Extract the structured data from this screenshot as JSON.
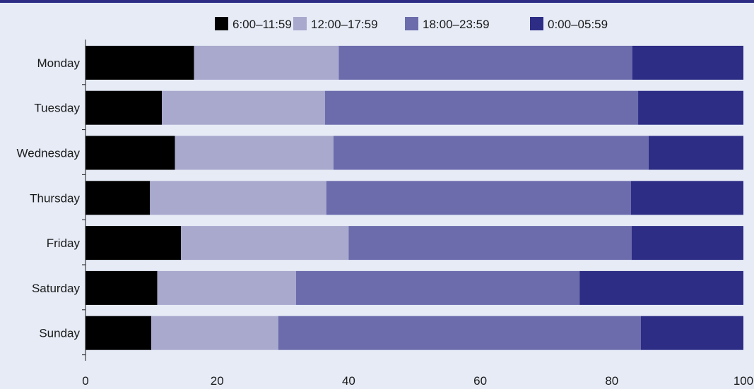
{
  "chart_data": {
    "type": "bar",
    "orientation": "horizontal",
    "stacked": true,
    "categories": [
      "Monday",
      "Tuesday",
      "Wednesday",
      "Thursday",
      "Friday",
      "Saturday",
      "Sunday"
    ],
    "series": [
      {
        "name": "6:00–11:59",
        "color": "#000000",
        "values": [
          16.5,
          11.6,
          13.6,
          9.8,
          14.5,
          10.9,
          10.0
        ]
      },
      {
        "name": "12:00–17:59",
        "color": "#a9a9cd",
        "values": [
          22.0,
          24.8,
          24.1,
          26.8,
          25.5,
          21.1,
          19.3
        ]
      },
      {
        "name": "18:00–23:59",
        "color": "#6c6cad",
        "values": [
          44.6,
          47.6,
          47.9,
          46.3,
          43.0,
          43.1,
          55.1
        ]
      },
      {
        "name": "0:00–05:59",
        "color": "#2d2d86",
        "values": [
          16.9,
          16.0,
          14.4,
          17.1,
          17.0,
          24.9,
          15.6
        ]
      }
    ],
    "x_ticks": [
      "0",
      "20",
      "40",
      "60",
      "80",
      "100"
    ],
    "xlim": [
      0,
      100
    ],
    "legend_position": "top",
    "grid": false
  }
}
